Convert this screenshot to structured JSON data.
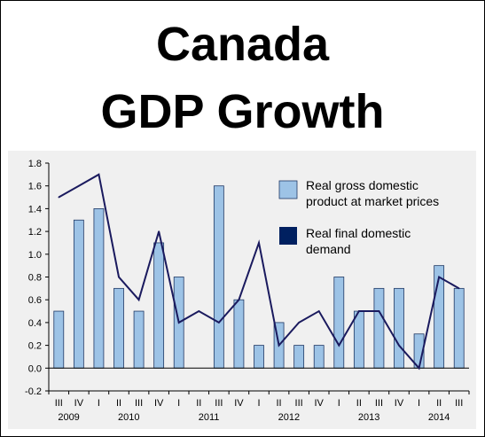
{
  "header": {
    "title_line1": "Canada",
    "title_line2": "GDP Growth"
  },
  "colors": {
    "bar_fill": "#9dc3e6",
    "bar_stroke": "#1f3864",
    "line": "#1a1a5e",
    "panel_bg": "#f0f0f0"
  },
  "chart_data": {
    "type": "bar",
    "ylim": [
      -0.2,
      1.8
    ],
    "yticks": [
      -0.2,
      0.0,
      0.2,
      0.4,
      0.6,
      0.8,
      1.0,
      1.2,
      1.4,
      1.6,
      1.8
    ],
    "ytick_labels": [
      "-0.2",
      "0.0",
      "0.2",
      "0.4",
      "0.6",
      "0.8",
      "1.0",
      "1.2",
      "1.4",
      "1.6",
      "1.8"
    ],
    "categories": [
      "III",
      "IV",
      "I",
      "II",
      "III",
      "IV",
      "I",
      "II",
      "III",
      "IV",
      "I",
      "II",
      "III",
      "IV",
      "I",
      "II",
      "III",
      "IV",
      "I",
      "II",
      "III"
    ],
    "years": [
      {
        "label": "2009",
        "from": 0,
        "to": 1
      },
      {
        "label": "2010",
        "from": 2,
        "to": 5
      },
      {
        "label": "2011",
        "from": 6,
        "to": 9
      },
      {
        "label": "2012",
        "from": 10,
        "to": 13
      },
      {
        "label": "2013",
        "from": 14,
        "to": 17
      },
      {
        "label": "2014",
        "from": 18,
        "to": 20
      }
    ],
    "series": [
      {
        "name": "Real gross domestic product at market prices",
        "legend_lines": [
          "Real gross domestic",
          "product at market prices"
        ],
        "kind": "bar",
        "values": [
          0.5,
          1.3,
          1.4,
          0.7,
          0.5,
          1.1,
          0.8,
          null,
          1.6,
          0.6,
          0.2,
          0.4,
          0.2,
          0.2,
          0.8,
          0.5,
          0.7,
          0.7,
          0.3,
          0.9,
          0.7
        ]
      },
      {
        "name": "Real final domestic demand",
        "legend_lines": [
          "Real final domestic",
          "demand"
        ],
        "kind": "line",
        "values": [
          1.5,
          1.6,
          1.7,
          0.8,
          0.6,
          1.2,
          0.4,
          0.5,
          0.4,
          0.6,
          1.1,
          0.2,
          0.4,
          0.5,
          0.2,
          0.5,
          0.5,
          0.2,
          0.0,
          0.8,
          0.7
        ]
      }
    ],
    "legend_position": "top-right",
    "grid": false
  }
}
